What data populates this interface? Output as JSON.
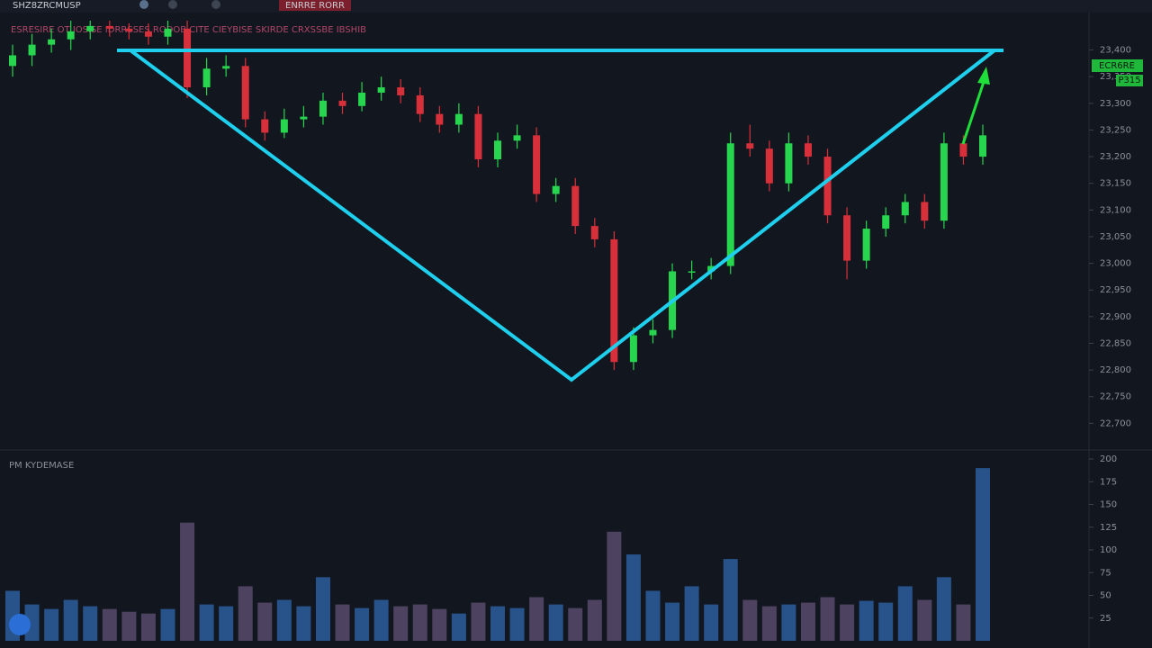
{
  "toolbar": {
    "symbol": "SHZ8ZRCMUSP",
    "alert": "ENRRE RORR"
  },
  "indicator_line": "ESRESIRE  OT  IOSISE  IDRRSSES RODOB CITE  CIEYBISE  SKIRDE  CRXSSBE  IBSHIB",
  "volume_label": "PM KYDEMASE",
  "price_tag": {
    "line1": "ECR6RE",
    "line2": "P315"
  },
  "chart_data": [
    {
      "type": "candlestick",
      "up_color": "#27d64e",
      "down_color": "#d8303a",
      "open": [
        23370,
        23390,
        23410,
        23420,
        23435,
        23445,
        23440,
        23435,
        23425,
        23440,
        23330,
        23365,
        23370,
        23270,
        23245,
        23270,
        23275,
        23305,
        23295,
        23320,
        23330,
        23315,
        23280,
        23260,
        23280,
        23195,
        23230,
        23240,
        23130,
        23145,
        23070,
        23045,
        22815,
        22865,
        22875,
        22985,
        22985,
        22995,
        23225,
        23215,
        23150,
        23225,
        23200,
        23090,
        23005,
        23065,
        23090,
        23115,
        23080,
        23225,
        23200
      ],
      "high": [
        23410,
        23430,
        23440,
        23455,
        23455,
        23455,
        23450,
        23450,
        23455,
        23455,
        23385,
        23390,
        23385,
        23285,
        23290,
        23295,
        23320,
        23320,
        23340,
        23350,
        23345,
        23330,
        23295,
        23300,
        23295,
        23245,
        23260,
        23255,
        23160,
        23160,
        23085,
        23060,
        22880,
        22895,
        23000,
        23005,
        23010,
        23245,
        23260,
        23230,
        23245,
        23240,
        23215,
        23105,
        23080,
        23105,
        23130,
        23130,
        23245,
        23240,
        23260
      ],
      "low": [
        23350,
        23370,
        23395,
        23400,
        23420,
        23425,
        23420,
        23410,
        23410,
        23310,
        23315,
        23350,
        23255,
        23230,
        23235,
        23255,
        23260,
        23280,
        23285,
        23305,
        23300,
        23265,
        23245,
        23245,
        23180,
        23180,
        23215,
        23115,
        23115,
        23055,
        23030,
        22800,
        22800,
        22850,
        22860,
        22970,
        22970,
        22980,
        23200,
        23135,
        23135,
        23185,
        23075,
        22970,
        22990,
        23050,
        23075,
        23065,
        23065,
        23185,
        23185
      ],
      "close": [
        23390,
        23410,
        23420,
        23435,
        23445,
        23440,
        23435,
        23425,
        23440,
        23330,
        23365,
        23370,
        23270,
        23245,
        23270,
        23275,
        23305,
        23295,
        23320,
        23330,
        23315,
        23280,
        23260,
        23280,
        23195,
        23230,
        23240,
        23130,
        23145,
        23070,
        23045,
        22815,
        22865,
        22875,
        22985,
        22985,
        22995,
        23225,
        23215,
        23150,
        23225,
        23200,
        23090,
        23005,
        23065,
        23090,
        23115,
        23080,
        23225,
        23200,
        23240
      ],
      "ylim": [
        22650,
        23460
      ],
      "yticks": [
        {
          "value": 23400,
          "label": "23,400"
        },
        {
          "value": 23350,
          "label": "23,350"
        },
        {
          "value": 23300,
          "label": "23,300"
        },
        {
          "value": 23250,
          "label": "23,250"
        },
        {
          "value": 23200,
          "label": "23,200"
        },
        {
          "value": 23150,
          "label": "23,150"
        },
        {
          "value": 23100,
          "label": "23,100"
        },
        {
          "value": 23050,
          "label": "23,050"
        },
        {
          "value": 23000,
          "label": "23,000"
        },
        {
          "value": 22950,
          "label": "22,950"
        },
        {
          "value": 22900,
          "label": "22,900"
        },
        {
          "value": 22850,
          "label": "22,850"
        },
        {
          "value": 22800,
          "label": "22,800"
        },
        {
          "value": 22750,
          "label": "22,750"
        },
        {
          "value": 22700,
          "label": "22,700"
        }
      ]
    },
    {
      "type": "bar",
      "values": [
        55,
        40,
        35,
        45,
        38,
        35,
        32,
        30,
        35,
        130,
        40,
        38,
        60,
        42,
        45,
        38,
        70,
        40,
        36,
        45,
        38,
        40,
        35,
        30,
        42,
        38,
        36,
        48,
        40,
        36,
        45,
        120,
        95,
        55,
        42,
        60,
        40,
        90,
        45,
        38,
        40,
        42,
        48,
        40,
        44,
        42,
        60,
        45,
        70,
        40,
        190
      ],
      "up_color": "#2a5a96",
      "down_color": "#544766",
      "ylim": [
        0,
        200
      ],
      "yticks": [
        25,
        50,
        75,
        100,
        125,
        150,
        175,
        200
      ]
    }
  ]
}
